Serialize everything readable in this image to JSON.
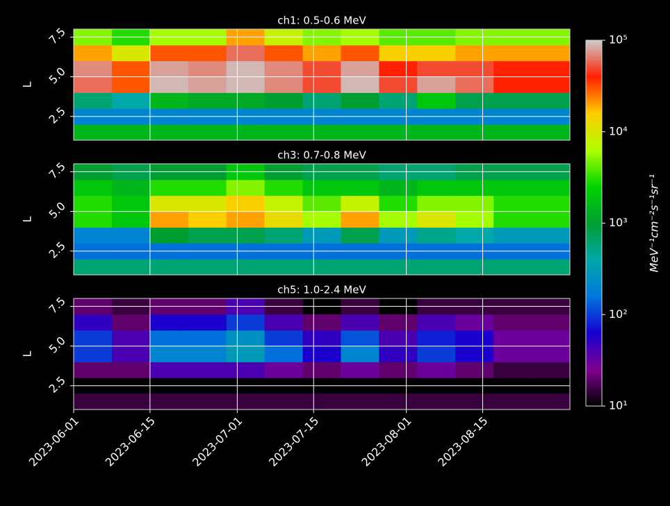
{
  "chart_data": [
    {
      "type": "heatmap",
      "title": "ch1: 0.5-0.6 MeV",
      "y_label": "L",
      "xlim": [
        "2023-06-01",
        "2023-08-31"
      ],
      "xticks": [
        "2023-06-01",
        "2023-06-15",
        "2023-07-01",
        "2023-07-15",
        "2023-08-01",
        "2023-08-15"
      ],
      "ylim": [
        1,
        8
      ],
      "yticks": [
        2.5,
        5.0,
        7.5
      ],
      "grid": true,
      "x_bins": [
        "2023-06-01",
        "2023-06-08",
        "2023-06-15",
        "2023-06-22",
        "2023-06-29",
        "2023-07-06",
        "2023-07-13",
        "2023-07-20",
        "2023-07-27",
        "2023-08-03",
        "2023-08-10",
        "2023-08-17",
        "2023-08-24",
        "2023-08-31"
      ],
      "y_bins": [
        1,
        2,
        3,
        4,
        5,
        6,
        7,
        8
      ],
      "z": [
        [
          1500,
          200,
          600,
          60000,
          70000,
          20000,
          5000
        ],
        [
          1500,
          200,
          400,
          30000,
          30000,
          10000,
          3000
        ],
        [
          1500,
          200,
          1500,
          90000,
          80000,
          30000,
          6000
        ],
        [
          1500,
          200,
          1200,
          80000,
          70000,
          30000,
          6000
        ],
        [
          1500,
          200,
          1200,
          90000,
          90000,
          60000,
          20000
        ],
        [
          1500,
          200,
          1000,
          70000,
          70000,
          30000,
          8000
        ],
        [
          1500,
          200,
          600,
          50000,
          50000,
          20000,
          5000
        ],
        [
          1500,
          200,
          1000,
          90000,
          80000,
          30000,
          6000
        ],
        [
          1500,
          200,
          600,
          50000,
          40000,
          15000,
          4000
        ],
        [
          1500,
          200,
          2000,
          80000,
          50000,
          15000,
          4000
        ],
        [
          1500,
          200,
          800,
          60000,
          50000,
          20000,
          5000
        ],
        [
          1500,
          200,
          800,
          40000,
          40000,
          20000,
          5000
        ],
        [
          1500,
          200,
          800,
          40000,
          40000,
          20000,
          5000
        ]
      ]
    },
    {
      "type": "heatmap",
      "title": "ch3: 0.7-0.8 MeV",
      "y_label": "L",
      "xlim": [
        "2023-06-01",
        "2023-08-31"
      ],
      "xticks": [
        "2023-06-01",
        "2023-06-15",
        "2023-07-01",
        "2023-07-15",
        "2023-08-01",
        "2023-08-15"
      ],
      "ylim": [
        1,
        8
      ],
      "yticks": [
        2.5,
        5.0,
        7.5
      ],
      "grid": true,
      "x_bins": [
        "2023-06-01",
        "2023-06-08",
        "2023-06-15",
        "2023-06-22",
        "2023-06-29",
        "2023-07-06",
        "2023-07-13",
        "2023-07-20",
        "2023-07-27",
        "2023-08-03",
        "2023-08-10",
        "2023-08-17",
        "2023-08-24",
        "2023-08-31"
      ],
      "y_bins": [
        1,
        2,
        3,
        4,
        5,
        6,
        7,
        8
      ],
      "z": [
        [
          600,
          150,
          200,
          3000,
          3000,
          2000,
          1000
        ],
        [
          600,
          150,
          200,
          2000,
          2000,
          1500,
          800
        ],
        [
          600,
          150,
          1000,
          20000,
          10000,
          3000,
          1000
        ],
        [
          600,
          150,
          800,
          15000,
          10000,
          3000,
          1000
        ],
        [
          600,
          150,
          800,
          20000,
          15000,
          5000,
          2000
        ],
        [
          600,
          150,
          600,
          12000,
          8000,
          3000,
          1000
        ],
        [
          600,
          150,
          300,
          6000,
          4000,
          2000,
          800
        ],
        [
          600,
          150,
          800,
          20000,
          8000,
          2000,
          800
        ],
        [
          600,
          150,
          300,
          6000,
          3000,
          1500,
          600
        ],
        [
          600,
          150,
          500,
          10000,
          5000,
          2000,
          600
        ],
        [
          600,
          150,
          400,
          6000,
          5000,
          2000,
          800
        ],
        [
          600,
          150,
          300,
          3000,
          3000,
          2000,
          800
        ],
        [
          600,
          150,
          300,
          3000,
          3000,
          2000,
          800
        ]
      ]
    },
    {
      "type": "heatmap",
      "title": "ch5: 1.0-2.4 MeV",
      "y_label": "L",
      "xlim": [
        "2023-06-01",
        "2023-08-31"
      ],
      "xticks": [
        "2023-06-01",
        "2023-06-15",
        "2023-07-01",
        "2023-07-15",
        "2023-08-01",
        "2023-08-15"
      ],
      "ylim": [
        1,
        8
      ],
      "yticks": [
        2.5,
        5.0,
        7.5
      ],
      "grid": true,
      "x_bins": [
        "2023-06-01",
        "2023-06-08",
        "2023-06-15",
        "2023-06-22",
        "2023-06-29",
        "2023-07-06",
        "2023-07-13",
        "2023-07-20",
        "2023-07-27",
        "2023-08-03",
        "2023-08-10",
        "2023-08-17",
        "2023-08-24",
        "2023-08-31"
      ],
      "y_bins": [
        1,
        2,
        3,
        4,
        5,
        6,
        7,
        8
      ],
      "z": [
        [
          15,
          null,
          20,
          100,
          100,
          50,
          20
        ],
        [
          15,
          null,
          20,
          40,
          40,
          20,
          15
        ],
        [
          15,
          null,
          40,
          200,
          150,
          60,
          20
        ],
        [
          15,
          null,
          40,
          200,
          150,
          60,
          20
        ],
        [
          15,
          null,
          40,
          300,
          250,
          100,
          40
        ],
        [
          15,
          null,
          30,
          150,
          100,
          40,
          15
        ],
        [
          15,
          null,
          20,
          60,
          50,
          20,
          null
        ],
        [
          15,
          null,
          30,
          200,
          120,
          40,
          15
        ],
        [
          15,
          null,
          20,
          50,
          40,
          20,
          null
        ],
        [
          15,
          null,
          30,
          100,
          80,
          40,
          15
        ],
        [
          15,
          null,
          20,
          60,
          60,
          30,
          15
        ],
        [
          15,
          null,
          15,
          30,
          30,
          20,
          15
        ],
        [
          15,
          null,
          15,
          30,
          30,
          20,
          15
        ]
      ]
    }
  ],
  "colorbar": {
    "label": "MeV⁻¹cm⁻²s⁻¹sr⁻¹",
    "scale": "log",
    "lim": [
      10,
      100000
    ],
    "ticks": [
      {
        "value": 10,
        "label": "10¹"
      },
      {
        "value": 100,
        "label": "10²"
      },
      {
        "value": 1000,
        "label": "10³"
      },
      {
        "value": 10000,
        "label": "10⁴"
      },
      {
        "value": 100000,
        "label": "10⁵"
      }
    ],
    "colormap": [
      "#000000",
      "#800090",
      "#1500d0",
      "#0077dd",
      "#00a8a8",
      "#009e30",
      "#00d400",
      "#b0ff00",
      "#ffcc00",
      "#ff2000",
      "#cccccc"
    ]
  }
}
